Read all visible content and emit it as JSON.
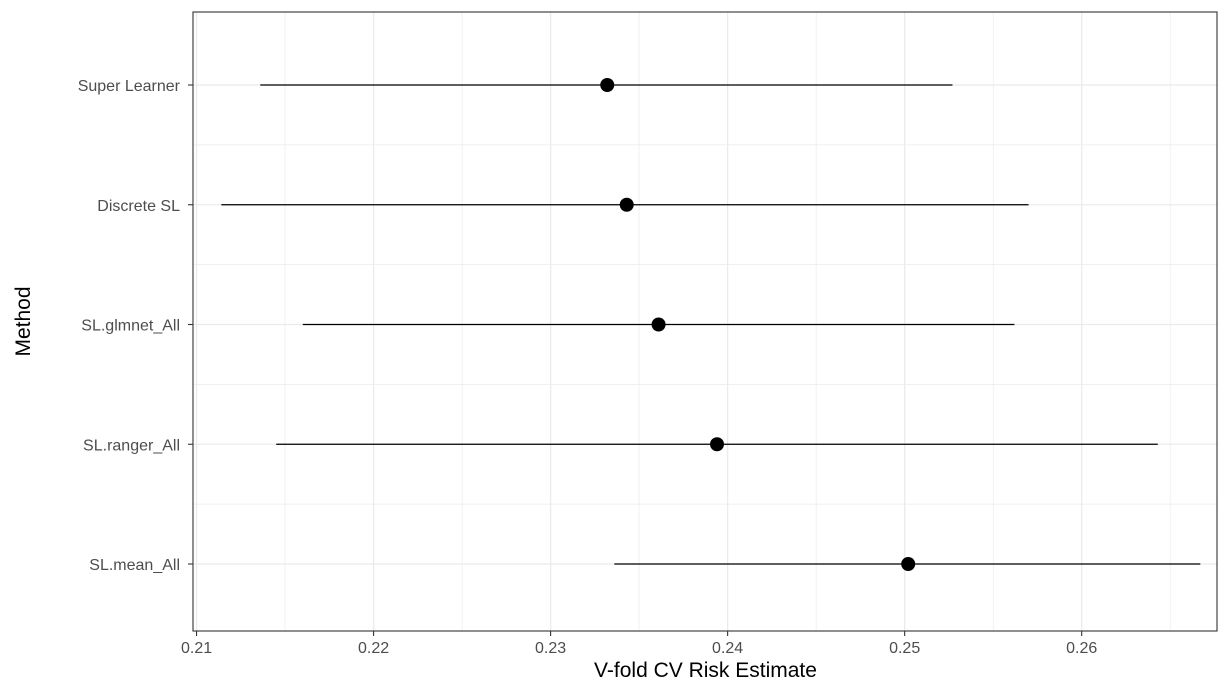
{
  "chart_data": {
    "type": "scatter",
    "subtype": "point-range",
    "title": "",
    "xlabel": "V-fold CV Risk Estimate",
    "ylabel": "Method",
    "xlim": [
      0.2098,
      0.2677
    ],
    "x_ticks": [
      0.21,
      0.22,
      0.23,
      0.24,
      0.25,
      0.26
    ],
    "x_tick_labels": [
      "0.21",
      "0.22",
      "0.23",
      "0.24",
      "0.25",
      "0.26"
    ],
    "grid": true,
    "legend": "none",
    "categories": [
      "Super Learner",
      "Discrete SL",
      "SL.glmnet_All",
      "SL.ranger_All",
      "SL.mean_All"
    ],
    "points": [
      {
        "method": "Super Learner",
        "estimate": 0.2332,
        "lower": 0.2136,
        "upper": 0.2527
      },
      {
        "method": "Discrete SL",
        "estimate": 0.2343,
        "lower": 0.2114,
        "upper": 0.257
      },
      {
        "method": "SL.glmnet_All",
        "estimate": 0.2361,
        "lower": 0.216,
        "upper": 0.2562
      },
      {
        "method": "SL.ranger_All",
        "estimate": 0.2394,
        "lower": 0.2145,
        "upper": 0.2643
      },
      {
        "method": "SL.mean_All",
        "estimate": 0.2502,
        "lower": 0.2336,
        "upper": 0.2667
      }
    ],
    "colors": {
      "point": "#000000",
      "line": "#000000",
      "grid": "#ebebeb",
      "panel_border": "#333333",
      "tick_label": "#4d4d4d"
    }
  }
}
